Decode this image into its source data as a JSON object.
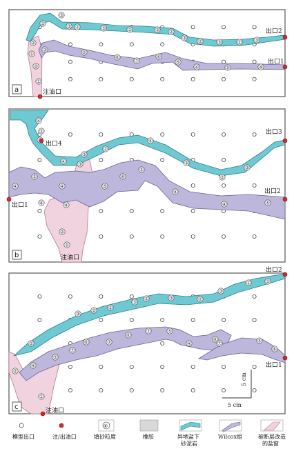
{
  "panels": [
    {
      "tag": "a",
      "outlets": [
        "出口2",
        "出口1"
      ],
      "inlet": "注油口"
    },
    {
      "tag": "b",
      "outlets": [
        "出口3",
        "出口4",
        "出口2",
        "出口1"
      ],
      "inlet": "注油口"
    },
    {
      "tag": "c",
      "outlets": [
        "出口2",
        "出口1"
      ],
      "inlet": "注油口",
      "scale_x": "5 cm",
      "scale_y": "5 cm"
    }
  ],
  "grain_sizes": {
    "a": {
      "cyan": [
        "③",
        "②",
        "③",
        "②",
        "③",
        "②",
        "③",
        "②",
        "③",
        "②",
        "③",
        "②",
        "③"
      ],
      "purple": [
        "③",
        "⑤",
        "⑥",
        "⑦",
        "⑥",
        "⑤",
        "④",
        "⑤",
        "④"
      ],
      "pink": [
        "②",
        "①",
        "②",
        "①"
      ]
    },
    "b": {
      "cyan": [
        "④",
        "②",
        "③",
        "④",
        "③",
        "②",
        "④",
        "③",
        "②",
        "③"
      ],
      "purple": [
        "④",
        "⑤",
        "④",
        "④",
        "⑤",
        "⑥",
        "⑤",
        "④",
        "④",
        "⑤"
      ],
      "pink": [
        "③",
        "④",
        "②",
        "①"
      ]
    },
    "c": {
      "cyan": [
        "②",
        "③",
        "②",
        "②",
        "③",
        "②",
        "③",
        "②",
        "③",
        "①",
        "②"
      ],
      "purple": [
        "④",
        "⑤",
        "⑦",
        "⑥",
        "⑦",
        "⑥",
        "⑦",
        "⑤",
        "④",
        "⑥",
        "⑦",
        "⑤",
        "⑥"
      ],
      "pink": [
        "②",
        "①"
      ]
    }
  },
  "legend": [
    {
      "key": "model-outlet",
      "label": "模型出口"
    },
    {
      "key": "inlet-outlet",
      "label": "注/出油口"
    },
    {
      "key": "grain-size",
      "label": "填砂粒度",
      "symbol": "⑥"
    },
    {
      "key": "rubber",
      "label": "橡胶"
    },
    {
      "key": "subsalt-sandstone",
      "label": "异地盐下\n砂泥岩"
    },
    {
      "key": "wilcox",
      "label": "Wilcox组"
    },
    {
      "key": "salt-window",
      "label": "被断层改造\n的盐窗"
    }
  ],
  "colors": {
    "cyan_fill": "#6fc9d3",
    "cyan_stroke": "#2c7f8a",
    "purple_fill": "#bdb7dc",
    "purple_stroke": "#6a6296",
    "pink_fill": "#f1d2df",
    "pink_stroke": "#b57c93",
    "port": "#d42a2a",
    "rubber": "#d8d8d8"
  }
}
